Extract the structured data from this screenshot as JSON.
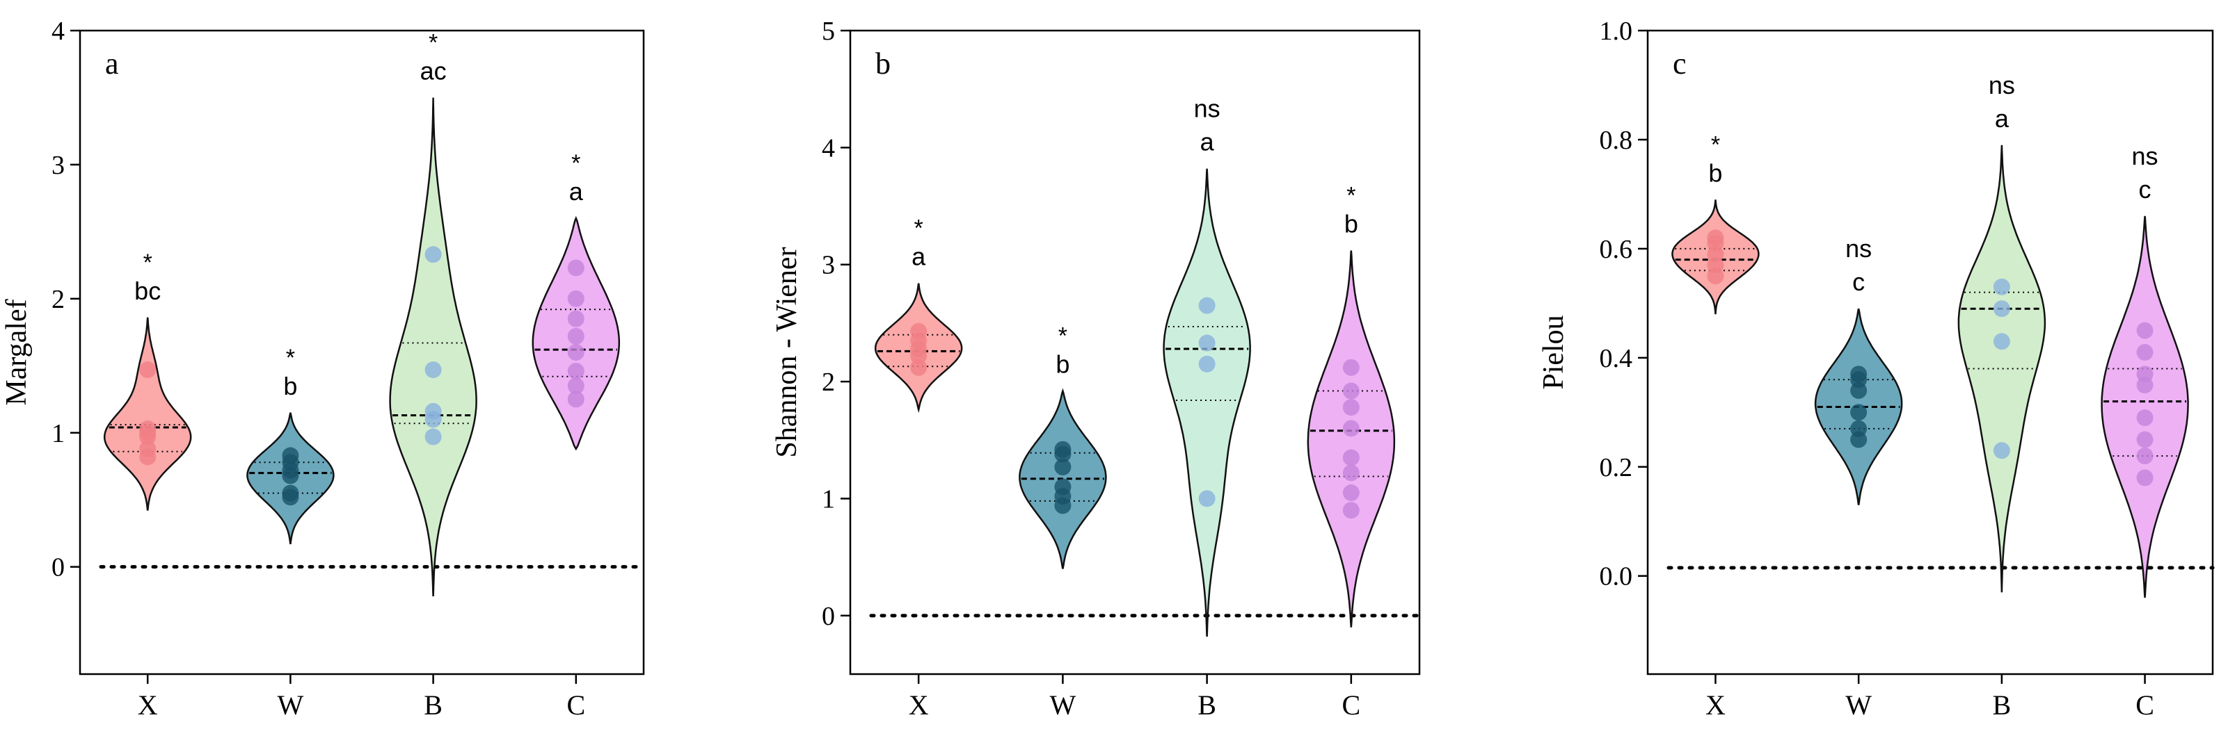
{
  "chart_data": [
    {
      "type": "violin",
      "panel_label": "a",
      "ylabel": "Margalef",
      "xlabel": "",
      "ylim": [
        -0.8,
        4
      ],
      "yticks": [
        0,
        1,
        2,
        3,
        4
      ],
      "ytick_labels": [
        "0",
        "1",
        "2",
        "3",
        "4"
      ],
      "reference_line": 0,
      "categories": [
        "X",
        "W",
        "B",
        "C"
      ],
      "groups": [
        {
          "name": "X",
          "color": "#fba0a0",
          "point_color": "#f07f86",
          "violin_range": [
            0.42,
            1.86
          ],
          "median": 1.04,
          "q1": 0.86,
          "q3": 1.06,
          "points": [
            0.82,
            0.88,
            0.97,
            1.0,
            1.03,
            1.47
          ],
          "sig_top": "*",
          "sig_letter": "bc"
        },
        {
          "name": "W",
          "color": "#5b9fb4",
          "point_color": "#18536a",
          "violin_range": [
            0.17,
            1.15
          ],
          "median": 0.7,
          "q1": 0.55,
          "q3": 0.78,
          "points": [
            0.52,
            0.55,
            0.68,
            0.72,
            0.78,
            0.83
          ],
          "sig_top": "*",
          "sig_letter": "b"
        },
        {
          "name": "B",
          "color": "#cdebc6",
          "point_color": "#8ab2dd",
          "violin_range": [
            -0.22,
            3.5
          ],
          "median": 1.13,
          "q1": 1.07,
          "q3": 1.67,
          "points": [
            0.97,
            1.1,
            1.16,
            1.47,
            2.33
          ],
          "sig_top": "*",
          "sig_letter": "ac"
        },
        {
          "name": "C",
          "color": "#eca9f3",
          "point_color": "#c583dc",
          "violin_range": [
            0.88,
            2.6
          ],
          "median": 1.62,
          "q1": 1.42,
          "q3": 1.92,
          "points": [
            1.25,
            1.35,
            1.46,
            1.6,
            1.72,
            1.85,
            2.0,
            2.23
          ],
          "sig_top": "*",
          "sig_letter": "a"
        }
      ]
    },
    {
      "type": "violin",
      "panel_label": "b",
      "ylabel": "Shannon - Wiener",
      "xlabel": "",
      "ylim": [
        -0.5,
        5
      ],
      "yticks": [
        0,
        1,
        2,
        3,
        4,
        5
      ],
      "ytick_labels": [
        "0",
        "1",
        "2",
        "3",
        "4",
        "5"
      ],
      "reference_line": 0,
      "categories": [
        "X",
        "W",
        "B",
        "C"
      ],
      "groups": [
        {
          "name": "X",
          "color": "#fba0a0",
          "point_color": "#f07f86",
          "violin_range": [
            1.76,
            2.84
          ],
          "median": 2.26,
          "q1": 2.13,
          "q3": 2.4,
          "points": [
            2.12,
            2.22,
            2.28,
            2.35,
            2.43
          ],
          "sig_top": "*",
          "sig_letter": "a"
        },
        {
          "name": "W",
          "color": "#5b9fb4",
          "point_color": "#18536a",
          "violin_range": [
            0.4,
            1.92
          ],
          "median": 1.17,
          "q1": 0.98,
          "q3": 1.39,
          "points": [
            0.94,
            1.02,
            1.1,
            1.27,
            1.38,
            1.42
          ],
          "sig_top": "*",
          "sig_letter": "b"
        },
        {
          "name": "B",
          "color": "#c7ecd9",
          "point_color": "#8ab2dd",
          "violin_range": [
            -0.18,
            3.82
          ],
          "median": 2.28,
          "q1": 1.84,
          "q3": 2.47,
          "points": [
            1.0,
            2.15,
            2.33,
            2.65
          ],
          "sig_top": "ns",
          "sig_letter": "a"
        },
        {
          "name": "C",
          "color": "#eca9f3",
          "point_color": "#c583dc",
          "violin_range": [
            -0.1,
            3.12
          ],
          "median": 1.58,
          "q1": 1.19,
          "q3": 1.92,
          "points": [
            0.9,
            1.05,
            1.22,
            1.35,
            1.6,
            1.78,
            1.92,
            2.12
          ],
          "sig_top": "*",
          "sig_letter": "b"
        }
      ]
    },
    {
      "type": "violin",
      "panel_label": "c",
      "ylabel": "Pielou",
      "xlabel": "",
      "ylim": [
        -0.18,
        1.0
      ],
      "yticks": [
        0.0,
        0.2,
        0.4,
        0.6,
        0.8,
        1.0
      ],
      "ytick_labels": [
        "0.0",
        "0.2",
        "0.4",
        "0.6",
        "0.8",
        "1.0"
      ],
      "reference_line": 0.015,
      "categories": [
        "X",
        "W",
        "B",
        "C"
      ],
      "groups": [
        {
          "name": "X",
          "color": "#fba0a0",
          "point_color": "#f07f86",
          "violin_range": [
            0.48,
            0.69
          ],
          "median": 0.58,
          "q1": 0.56,
          "q3": 0.6,
          "points": [
            0.55,
            0.57,
            0.59,
            0.61,
            0.62
          ],
          "sig_top": "*",
          "sig_letter": "b"
        },
        {
          "name": "W",
          "color": "#5b9fb4",
          "point_color": "#18536a",
          "violin_range": [
            0.13,
            0.49
          ],
          "median": 0.31,
          "q1": 0.27,
          "q3": 0.36,
          "points": [
            0.25,
            0.27,
            0.3,
            0.34,
            0.36,
            0.37
          ],
          "sig_top": "ns",
          "sig_letter": "c"
        },
        {
          "name": "B",
          "color": "#cdebc6",
          "point_color": "#8ab2dd",
          "violin_range": [
            -0.03,
            0.79
          ],
          "median": 0.49,
          "q1": 0.38,
          "q3": 0.52,
          "points": [
            0.23,
            0.43,
            0.49,
            0.53
          ],
          "sig_top": "ns",
          "sig_letter": "a"
        },
        {
          "name": "C",
          "color": "#eca9f3",
          "point_color": "#c583dc",
          "violin_range": [
            -0.04,
            0.66
          ],
          "median": 0.32,
          "q1": 0.22,
          "q3": 0.38,
          "points": [
            0.18,
            0.22,
            0.25,
            0.29,
            0.35,
            0.37,
            0.41,
            0.45
          ],
          "sig_top": "ns",
          "sig_letter": "c"
        }
      ]
    }
  ]
}
